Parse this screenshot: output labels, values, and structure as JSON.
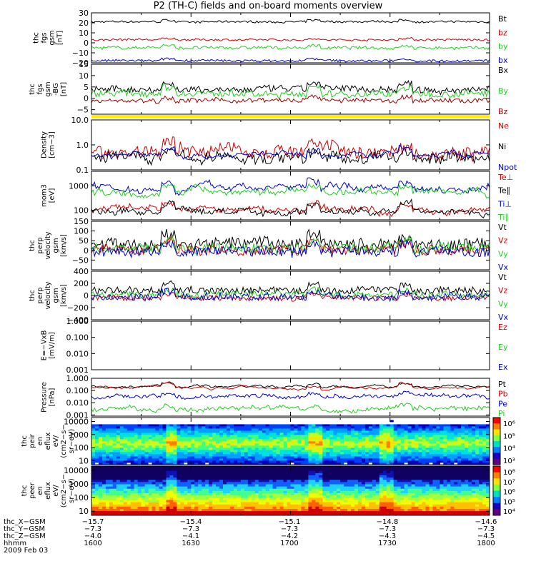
{
  "title": "P2 (TH-C) fields and on-board moments overview",
  "colors": {
    "black": "#000000",
    "red": "#cc0000",
    "green": "#22cc22",
    "blue": "#0000cc",
    "darkred": "#990000",
    "yellow": "#ffee00"
  },
  "chart_data": [
    {
      "type": "line",
      "name": "fgs",
      "ylabel": [
        "thc",
        "fgs",
        "gsm",
        "[nT]"
      ],
      "ylim": [
        -20,
        30
      ],
      "yticks": [
        "30",
        "20",
        "10",
        "0",
        "−10",
        "−20"
      ],
      "tick_values": [
        30,
        20,
        10,
        0,
        -10,
        -20
      ],
      "series": [
        {
          "name": "Bt",
          "color": "black",
          "level": 21,
          "noise": 1.0
        },
        {
          "name": "bz",
          "color": "red",
          "level": 3,
          "noise": 1.0
        },
        {
          "name": "by",
          "color": "green",
          "level": -5,
          "noise": 1.5
        },
        {
          "name": "bx",
          "color": "blue",
          "level": -18,
          "noise": 1.2
        }
      ]
    },
    {
      "type": "line",
      "name": "fgs-dsl",
      "ylabel": [
        "thc",
        "fgs",
        "gsm",
        "-BG",
        "[nT]"
      ],
      "ylim": [
        -7,
        15
      ],
      "yticks": [
        "15",
        "10",
        "5",
        "0",
        "−5"
      ],
      "tick_values": [
        15,
        10,
        5,
        0,
        -5
      ],
      "series": [
        {
          "name": "Bx",
          "color": "black",
          "level": 4,
          "noise": 1.5
        },
        {
          "name": "By",
          "color": "green",
          "level": 2,
          "noise": 1.5
        },
        {
          "name": "Bz",
          "color": "darkred",
          "level": -1,
          "noise": 1.0
        }
      ]
    },
    {
      "type": "line",
      "name": "density",
      "ylabel": [
        "Density",
        "[cm−3]"
      ],
      "log": true,
      "ylim": [
        0.1,
        10
      ],
      "yticks": [
        "10.0",
        "1.0",
        "0.1"
      ],
      "tick_values": [
        10,
        1,
        0.1
      ],
      "series": [
        {
          "name": "Ne",
          "color": "red",
          "level": 0.6,
          "noise": 0.5
        },
        {
          "name": "Ni",
          "color": "black",
          "level": 0.3,
          "noise": 0.4
        },
        {
          "name": "Npot",
          "color": "blue",
          "level": 0.4,
          "noise": 0.1
        }
      ]
    },
    {
      "type": "line",
      "name": "temperature",
      "ylabel": [
        "mom3",
        "[eV]"
      ],
      "log": true,
      "ylim": [
        40,
        4000
      ],
      "yticks": [
        "1000",
        "100"
      ],
      "tick_values": [
        1000,
        100
      ],
      "series": [
        {
          "name": "Te⊥",
          "color": "red",
          "level": 100,
          "noise": 0.2
        },
        {
          "name": "Te∥",
          "color": "black",
          "level": 90,
          "noise": 0.2
        },
        {
          "name": "Ti⊥",
          "color": "blue",
          "level": 900,
          "noise": 0.2
        },
        {
          "name": "Ti∥",
          "color": "green",
          "level": 600,
          "noise": 0.2
        }
      ]
    },
    {
      "type": "line",
      "name": "velocity-perp",
      "ylabel": [
        "thc",
        "perp",
        "velocity",
        "gsm",
        "[km/s]"
      ],
      "ylim": [
        -100,
        150
      ],
      "yticks": [
        "150",
        "100",
        "50",
        "0",
        "−50"
      ],
      "tick_values": [
        150,
        100,
        50,
        0,
        -50
      ],
      "series": [
        {
          "name": "Vt",
          "color": "black",
          "level": 30,
          "noise": 30
        },
        {
          "name": "Vz",
          "color": "red",
          "level": 5,
          "noise": 25
        },
        {
          "name": "Vy",
          "color": "green",
          "level": 10,
          "noise": 25
        },
        {
          "name": "Vx",
          "color": "blue",
          "level": -5,
          "noise": 25
        }
      ]
    },
    {
      "type": "line",
      "name": "velocity-par",
      "ylabel": [
        "thc",
        "perp",
        "velocity",
        "gsm",
        "[km/s]"
      ],
      "ylim": [
        -400,
        400
      ],
      "yticks": [
        "400",
        "200",
        "0",
        "−200",
        "−400"
      ],
      "tick_values": [
        400,
        200,
        0,
        -200,
        -400
      ],
      "series": [
        {
          "name": "Vt",
          "color": "black",
          "level": 80,
          "noise": 60
        },
        {
          "name": "Vz",
          "color": "red",
          "level": -40,
          "noise": 40
        },
        {
          "name": "Vy",
          "color": "green",
          "level": 20,
          "noise": 50
        },
        {
          "name": "Vx",
          "color": "blue",
          "level": -20,
          "noise": 60
        }
      ]
    },
    {
      "type": "line",
      "name": "efield",
      "ylabel": [
        "E=−VxB",
        "[mV/m]"
      ],
      "log": true,
      "ylim": [
        0.001,
        1
      ],
      "yticks": [
        "1.000",
        "0.100",
        "0.010",
        "0.001"
      ],
      "tick_values": [
        1,
        0.1,
        0.01,
        0.001
      ],
      "series": [
        {
          "name": "Ez",
          "color": "red"
        },
        {
          "name": "Ey",
          "color": "green"
        },
        {
          "name": "Ex",
          "color": "blue"
        }
      ]
    },
    {
      "type": "line",
      "name": "pressure",
      "ylabel": [
        "Pressure",
        "[nPa]"
      ],
      "log": true,
      "ylim": [
        0.0008,
        1
      ],
      "yticks": [
        "1.000",
        "0.100",
        "0.010",
        "0.001"
      ],
      "tick_values": [
        1,
        0.1,
        0.01,
        0.001
      ],
      "series": [
        {
          "name": "Pt",
          "color": "black",
          "level": 0.2,
          "noise": 0.05
        },
        {
          "name": "Pb",
          "color": "red",
          "level": 0.18,
          "noise": 0.05
        },
        {
          "name": "Pe",
          "color": "blue",
          "level": 0.03,
          "noise": 0.25
        },
        {
          "name": "Pi",
          "color": "green",
          "level": 0.003,
          "noise": 0.3
        }
      ]
    },
    {
      "type": "heatmap",
      "name": "ion-spectrogram",
      "ylabel": [
        "thc",
        "peir",
        "en",
        "eflux",
        "eV/",
        "(cm2−s−",
        "sr−eV)"
      ],
      "log": true,
      "ylim": [
        5,
        20000
      ],
      "yticks": [
        "10000",
        "1000",
        "100",
        "10"
      ],
      "tick_values": [
        10000,
        1000,
        100,
        10
      ],
      "colorbar": {
        "ticks": [
          "10⁶",
          "10⁵",
          "10⁴",
          "10³"
        ]
      }
    },
    {
      "type": "heatmap",
      "name": "electron-spectrogram",
      "ylabel": [
        "thc",
        "peer",
        "en",
        "eflux",
        "eV/",
        "(cm2−s−",
        "sr−eV)"
      ],
      "log": true,
      "ylim": [
        5,
        20000
      ],
      "yticks": [
        "10000",
        "1000",
        "100",
        "10"
      ],
      "tick_values": [
        10000,
        1000,
        100,
        10
      ],
      "colorbar": {
        "ticks": [
          "10⁸",
          "10⁷",
          "10⁶",
          "10⁵",
          "10⁴"
        ]
      }
    }
  ],
  "footer": {
    "rows": [
      {
        "label": "thc_X−GSM",
        "values": [
          "−15.7",
          "−15.4",
          "−15.1",
          "−14.8",
          "−14.6"
        ]
      },
      {
        "label": "thc_Y−GSM",
        "values": [
          "−7.3",
          "−7.3",
          "−7.3",
          "−7.3",
          "−7.3"
        ]
      },
      {
        "label": "thc_Z−GSM",
        "values": [
          "−4.0",
          "−4.1",
          "−4.2",
          "−4.3",
          "−4.5"
        ]
      },
      {
        "label": "hhmm",
        "values": [
          "1600",
          "1630",
          "1700",
          "1730",
          "1800"
        ]
      }
    ],
    "date": "2009 Feb 03"
  }
}
